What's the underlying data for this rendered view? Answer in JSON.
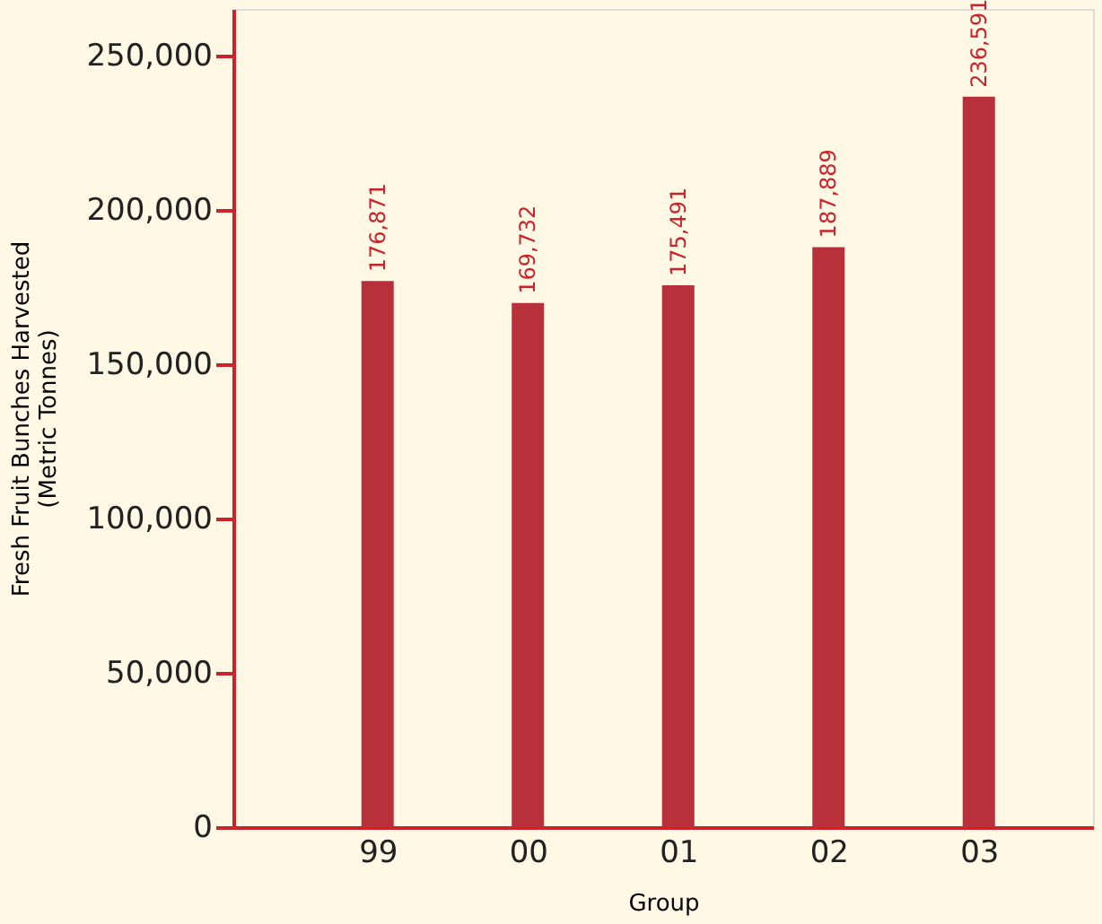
{
  "chart_data": {
    "type": "bar",
    "categories": [
      "99",
      "00",
      "01",
      "02",
      "03"
    ],
    "values": [
      176871,
      169732,
      175491,
      187889,
      236591
    ],
    "value_labels": [
      "176,871",
      "169,732",
      "175,491",
      "187,889",
      "236,591"
    ],
    "color": "#b8303a",
    "xlabel": "Group",
    "ylabel": "Fresh Fruit Bunches Harvested\n(Metric Tonnes)",
    "ylim": [
      0,
      265000
    ],
    "yticks": [
      0,
      {
        "value": 50000,
        "label": "50,000"
      },
      {
        "value": 100000,
        "label": "100,000"
      },
      {
        "value": 150000,
        "label": "150,000"
      },
      {
        "value": 200000,
        "label": "200,000"
      },
      {
        "value": 250000,
        "label": "250,000"
      }
    ],
    "grid": false
  }
}
